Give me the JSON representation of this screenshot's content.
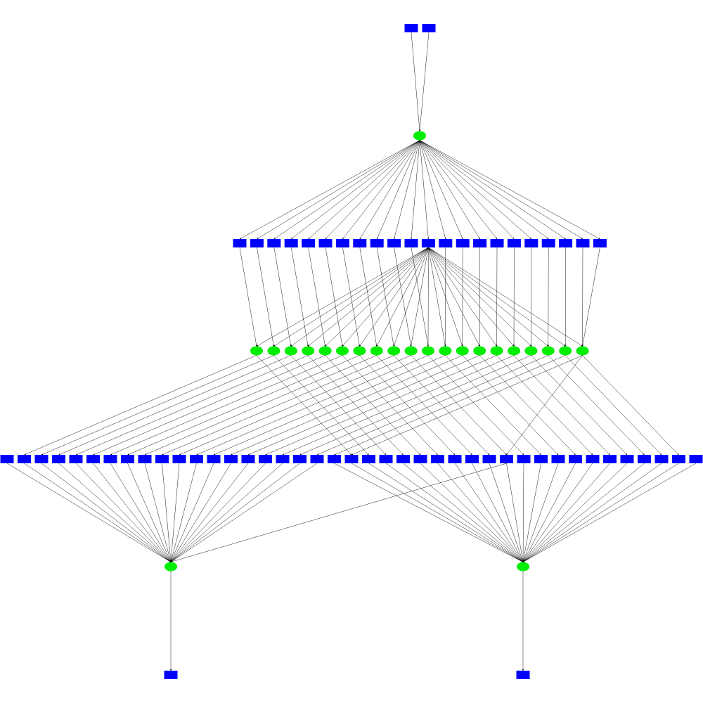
{
  "diagram": {
    "type": "layered-directed-graph",
    "colors": {
      "place": "#0000ff",
      "transition": "#00ee00",
      "edge": "#000000",
      "background": "#ffffff"
    },
    "node_shapes": {
      "place": "rectangle",
      "transition": "ellipse"
    },
    "layers": [
      {
        "id": "L0",
        "kind": "place",
        "count": 2
      },
      {
        "id": "L1",
        "kind": "transition",
        "count": 1
      },
      {
        "id": "L2",
        "kind": "place",
        "count": 22
      },
      {
        "id": "L3",
        "kind": "transition",
        "count": 20
      },
      {
        "id": "L4",
        "kind": "place",
        "count": 41
      },
      {
        "id": "L5",
        "kind": "transition",
        "count": 2
      },
      {
        "id": "L6",
        "kind": "place",
        "count": 2
      }
    ],
    "hub_sources": {
      "L2": 11,
      "L4_back": 29
    }
  }
}
